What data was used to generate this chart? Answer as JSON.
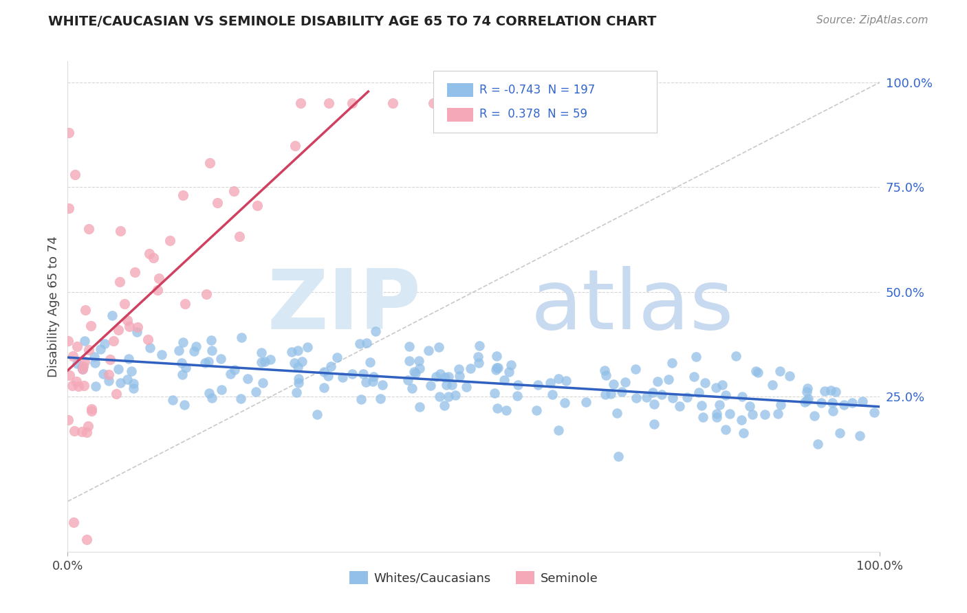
{
  "title": "WHITE/CAUCASIAN VS SEMINOLE DISABILITY AGE 65 TO 74 CORRELATION CHART",
  "source": "Source: ZipAtlas.com",
  "ylabel_label": "Disability Age 65 to 74",
  "legend_label1": "Whites/Caucasians",
  "legend_label2": "Seminole",
  "R1": -0.743,
  "N1": 197,
  "R2": 0.378,
  "N2": 59,
  "blue_color": "#92C0E8",
  "pink_color": "#F4A8B8",
  "blue_line_color": "#3060C0",
  "pink_line_color": "#D04060",
  "legend_text_color": "#3366CC",
  "axis_text_color": "#3366CC",
  "title_color": "#222222",
  "source_color": "#888888",
  "watermark_zip_color": "#D8E8F4",
  "watermark_atlas_color": "#C8DAF0",
  "xmin": 0.0,
  "xmax": 1.0,
  "ymin": -0.12,
  "ymax": 1.05,
  "grid_color": "#CCCCCC",
  "grid_yticks": [
    0.25,
    0.5,
    0.75,
    1.0
  ]
}
